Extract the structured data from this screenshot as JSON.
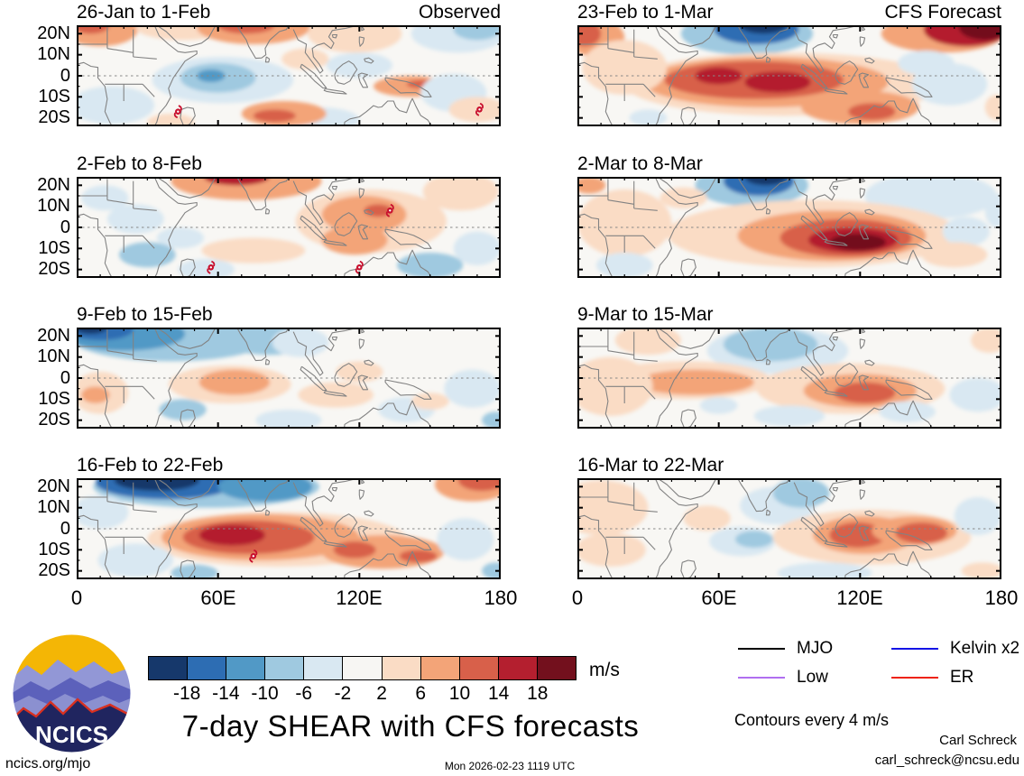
{
  "figure": {
    "title": "7-day SHEAR with CFS forecasts",
    "timestamp": "Mon 2026-02-23 1119 UTC",
    "site": "ncics.org/mjo",
    "author": "Carl Schreck",
    "email": "carl_schreck@ncsu.edu",
    "contours_note": "Contours every 4 m/s",
    "logo_text": "NCICS"
  },
  "axes": {
    "x_ticks": [
      "0",
      "60E",
      "120E",
      "180"
    ],
    "y_ticks": [
      "20N",
      "10N",
      "0",
      "10S",
      "20S"
    ]
  },
  "legend": {
    "items": [
      {
        "label": "MJO",
        "color": "#000000"
      },
      {
        "label": "Kelvin x2",
        "color": "#1414e6"
      },
      {
        "label": "Low",
        "color": "#b06ff0"
      },
      {
        "label": "ER",
        "color": "#ee2211"
      }
    ]
  },
  "chart_data": {
    "type": "heatmap",
    "title": "7-day SHEAR with CFS forecasts",
    "units": "m/s",
    "x_range_deg_east": [
      0,
      180
    ],
    "y_range_deg_lat": [
      -24,
      24
    ],
    "map_bg": "#f8f7f4",
    "coast_color": "#828282",
    "cyclone_color": "#c8102e",
    "colorbar": {
      "tick_labels": [
        "-18",
        "-14",
        "-10",
        "-6",
        "-2",
        "2",
        "6",
        "10",
        "14",
        "18"
      ],
      "colors": [
        "#16386b",
        "#2d6db3",
        "#5199c6",
        "#9fc9e0",
        "#d9e8f2",
        "#f7f6f3",
        "#fadcc5",
        "#f3a478",
        "#d8604a",
        "#b41f2f",
        "#73101d"
      ],
      "units": "m/s"
    },
    "panels": [
      {
        "title": "26-Jan to 1-Feb",
        "tag": "Observed",
        "features": [
          [
            10,
            22,
            16,
            8,
            7
          ],
          [
            6,
            24,
            8,
            4,
            8
          ],
          [
            45,
            23,
            20,
            6,
            6
          ],
          [
            75,
            23,
            24,
            8,
            7
          ],
          [
            72,
            24,
            12,
            4,
            8
          ],
          [
            118,
            20,
            20,
            9,
            6
          ],
          [
            162,
            20,
            20,
            9,
            4
          ],
          [
            170,
            22,
            10,
            5,
            3
          ],
          [
            62,
            -2,
            30,
            11,
            4
          ],
          [
            60,
            -1,
            16,
            7,
            3
          ],
          [
            57,
            0,
            6,
            3,
            2
          ],
          [
            15,
            -14,
            18,
            9,
            4
          ],
          [
            104,
            -21,
            16,
            6,
            4
          ],
          [
            88,
            -18,
            18,
            6,
            7
          ],
          [
            84,
            -19,
            9,
            3,
            8
          ],
          [
            40,
            -22,
            10,
            4,
            6
          ],
          [
            142,
            -5,
            16,
            5,
            7
          ],
          [
            147,
            -4,
            7,
            2,
            8
          ],
          [
            160,
            -8,
            14,
            9,
            4
          ],
          [
            170,
            -16,
            12,
            6,
            6
          ],
          [
            120,
            5,
            14,
            6,
            4
          ],
          [
            97,
            8,
            10,
            5,
            6
          ]
        ],
        "cyclones": [
          [
            43,
            -17
          ],
          [
            171,
            -16
          ]
        ]
      },
      {
        "title": "2-Feb to 8-Feb",
        "tag": "",
        "features": [
          [
            72,
            22,
            32,
            9,
            7
          ],
          [
            68,
            24,
            14,
            4,
            9
          ],
          [
            125,
            3,
            32,
            15,
            6
          ],
          [
            122,
            6,
            18,
            9,
            7
          ],
          [
            128,
            8,
            6,
            3,
            8
          ],
          [
            118,
            -6,
            14,
            7,
            7
          ],
          [
            163,
            17,
            16,
            9,
            6
          ],
          [
            25,
            4,
            12,
            7,
            4
          ],
          [
            44,
            -5,
            10,
            5,
            4
          ],
          [
            30,
            -13,
            12,
            6,
            3
          ],
          [
            55,
            -20,
            12,
            5,
            4
          ],
          [
            150,
            -18,
            14,
            6,
            3
          ],
          [
            170,
            -10,
            10,
            8,
            4
          ],
          [
            75,
            -11,
            22,
            6,
            6
          ],
          [
            12,
            14,
            10,
            6,
            4
          ]
        ],
        "cyclones": [
          [
            133,
            8
          ],
          [
            57,
            -19
          ],
          [
            120,
            -19
          ]
        ]
      },
      {
        "title": "9-Feb to 15-Feb",
        "tag": "",
        "features": [
          [
            40,
            19,
            42,
            11,
            3
          ],
          [
            20,
            21,
            26,
            8,
            2
          ],
          [
            10,
            23,
            14,
            5,
            1
          ],
          [
            6,
            24,
            7,
            3,
            0
          ],
          [
            82,
            19,
            22,
            8,
            3
          ],
          [
            95,
            17,
            12,
            7,
            4
          ],
          [
            65,
            -3,
            26,
            9,
            6
          ],
          [
            67,
            -2,
            15,
            6,
            7
          ],
          [
            10,
            -7,
            12,
            10,
            6
          ],
          [
            8,
            -8,
            6,
            4,
            7
          ],
          [
            110,
            -8,
            16,
            6,
            6
          ],
          [
            120,
            3,
            10,
            5,
            6
          ],
          [
            45,
            -15,
            10,
            5,
            3
          ],
          [
            90,
            -20,
            14,
            5,
            4
          ],
          [
            140,
            -15,
            12,
            6,
            4
          ],
          [
            168,
            -5,
            12,
            9,
            4
          ],
          [
            150,
            -11,
            8,
            4,
            6
          ],
          [
            178,
            -20,
            6,
            4,
            3
          ]
        ],
        "cyclones": []
      },
      {
        "title": "16-Feb to 22-Feb",
        "tag": "",
        "features": [
          [
            55,
            20,
            48,
            10,
            3
          ],
          [
            38,
            22,
            30,
            8,
            1
          ],
          [
            34,
            23,
            18,
            5,
            0
          ],
          [
            80,
            20,
            20,
            7,
            2
          ],
          [
            168,
            21,
            16,
            8,
            7
          ],
          [
            172,
            23,
            10,
            5,
            8
          ],
          [
            85,
            -5,
            55,
            13,
            6
          ],
          [
            78,
            -4,
            42,
            11,
            7
          ],
          [
            73,
            -4,
            28,
            8,
            8
          ],
          [
            66,
            -3,
            14,
            5,
            9
          ],
          [
            130,
            -11,
            26,
            8,
            7
          ],
          [
            118,
            -10,
            9,
            4,
            8
          ],
          [
            145,
            -13,
            8,
            3,
            8
          ],
          [
            25,
            -15,
            16,
            8,
            4
          ],
          [
            50,
            -21,
            10,
            4,
            3
          ],
          [
            165,
            -5,
            12,
            10,
            4
          ],
          [
            178,
            -20,
            6,
            4,
            3
          ],
          [
            10,
            8,
            12,
            8,
            4
          ]
        ],
        "cyclones": [
          [
            75,
            -13
          ]
        ]
      },
      {
        "title": "23-Feb to 1-Mar",
        "tag": "CFS Forecast",
        "features": [
          [
            8,
            18,
            12,
            9,
            7
          ],
          [
            3,
            20,
            7,
            6,
            8
          ],
          [
            72,
            20,
            28,
            10,
            3
          ],
          [
            76,
            22,
            18,
            7,
            1
          ],
          [
            79,
            24,
            10,
            4,
            0
          ],
          [
            155,
            20,
            26,
            9,
            7
          ],
          [
            165,
            22,
            18,
            8,
            9
          ],
          [
            173,
            23,
            11,
            6,
            10
          ],
          [
            88,
            -4,
            68,
            15,
            6
          ],
          [
            80,
            -3,
            52,
            12,
            7
          ],
          [
            75,
            -2,
            38,
            9,
            8
          ],
          [
            85,
            -3,
            14,
            5,
            9
          ],
          [
            60,
            0,
            10,
            4,
            9
          ],
          [
            120,
            -15,
            25,
            8,
            7
          ],
          [
            125,
            -17,
            10,
            4,
            8
          ],
          [
            158,
            -4,
            16,
            10,
            4
          ],
          [
            148,
            6,
            12,
            6,
            4
          ],
          [
            20,
            4,
            18,
            13,
            6
          ],
          [
            30,
            -20,
            8,
            4,
            4
          ],
          [
            178,
            -15,
            5,
            6,
            6
          ]
        ],
        "cyclones": []
      },
      {
        "title": "2-Mar to 8-Mar",
        "tag": "",
        "features": [
          [
            74,
            20,
            24,
            10,
            3
          ],
          [
            77,
            22,
            15,
            7,
            1
          ],
          [
            80,
            24,
            9,
            4,
            0
          ],
          [
            150,
            15,
            28,
            11,
            4
          ],
          [
            100,
            -3,
            62,
            16,
            6
          ],
          [
            108,
            -4,
            40,
            12,
            7
          ],
          [
            114,
            -5,
            28,
            9,
            8
          ],
          [
            117,
            -6,
            19,
            6,
            9
          ],
          [
            119,
            -7,
            12,
            4,
            10
          ],
          [
            20,
            2,
            20,
            16,
            6
          ],
          [
            5,
            20,
            7,
            4,
            7
          ],
          [
            45,
            14,
            10,
            5,
            6
          ],
          [
            20,
            -18,
            12,
            6,
            4
          ],
          [
            165,
            -2,
            10,
            7,
            4
          ],
          [
            160,
            -13,
            14,
            6,
            6
          ],
          [
            178,
            8,
            5,
            8,
            4
          ]
        ],
        "cyclones": []
      },
      {
        "title": "9-Mar to 15-Mar",
        "tag": "",
        "features": [
          [
            85,
            13,
            30,
            11,
            4
          ],
          [
            82,
            16,
            20,
            8,
            3
          ],
          [
            46,
            -1,
            36,
            9,
            6
          ],
          [
            50,
            -2,
            25,
            6,
            7
          ],
          [
            116,
            -5,
            40,
            12,
            6
          ],
          [
            120,
            -6,
            24,
            8,
            7
          ],
          [
            122,
            -7,
            13,
            5,
            8
          ],
          [
            14,
            -4,
            18,
            14,
            6
          ],
          [
            60,
            -13,
            8,
            4,
            4
          ],
          [
            90,
            -18,
            15,
            5,
            4
          ],
          [
            140,
            -16,
            12,
            5,
            4
          ],
          [
            170,
            -8,
            12,
            8,
            4
          ],
          [
            175,
            18,
            8,
            6,
            6
          ],
          [
            30,
            18,
            14,
            7,
            6
          ]
        ],
        "cyclones": []
      },
      {
        "title": "16-Mar to 22-Mar",
        "tag": "",
        "features": [
          [
            10,
            10,
            20,
            13,
            6
          ],
          [
            14,
            -10,
            15,
            8,
            6
          ],
          [
            85,
            11,
            16,
            9,
            4
          ],
          [
            95,
            17,
            12,
            7,
            3
          ],
          [
            70,
            -6,
            14,
            7,
            4
          ],
          [
            75,
            -5,
            8,
            4,
            3
          ],
          [
            125,
            -4,
            42,
            13,
            6
          ],
          [
            122,
            -3,
            22,
            9,
            7
          ],
          [
            119,
            -3,
            12,
            6,
            8
          ],
          [
            143,
            -1,
            18,
            7,
            7
          ],
          [
            146,
            -2,
            11,
            5,
            8
          ],
          [
            105,
            -21,
            20,
            5,
            4
          ],
          [
            170,
            6,
            10,
            9,
            4
          ],
          [
            172,
            -20,
            9,
            4,
            6
          ],
          [
            55,
            5,
            10,
            6,
            6
          ]
        ],
        "cyclones": []
      }
    ]
  }
}
